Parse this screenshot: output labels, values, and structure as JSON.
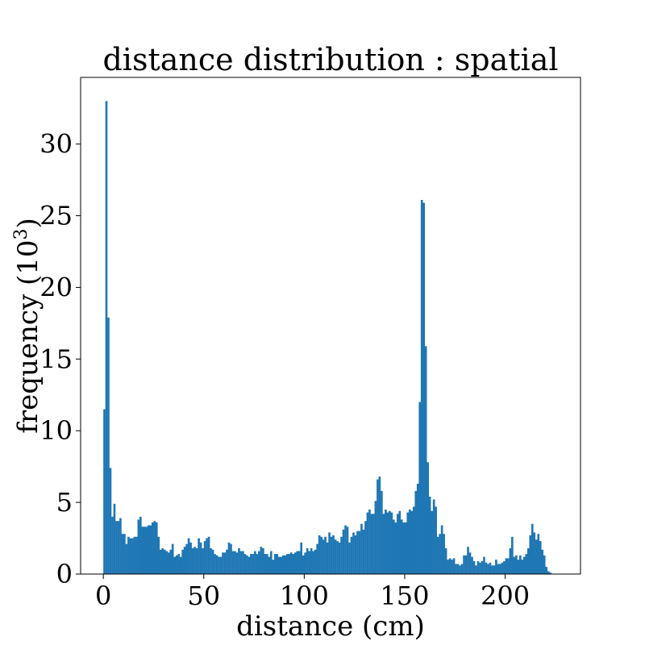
{
  "chart_data": {
    "type": "bar",
    "title": "distance distribution : spatial",
    "xlabel": "distance (cm)",
    "ylabel": "frequency (10",
    "ylabel_exp": "3",
    "ylabel_close": ")",
    "xlim": [
      -11.3,
      237.5
    ],
    "ylim": [
      0,
      34.65
    ],
    "xticks": [
      0,
      50,
      100,
      150,
      200
    ],
    "yticks": [
      0,
      5,
      10,
      15,
      20,
      25,
      30
    ],
    "bin_start": 0,
    "bin_width": 1,
    "bar_color": "#1f77b4",
    "values": [
      11.5,
      33.0,
      17.9,
      7.4,
      4.0,
      4.9,
      3.7,
      3.7,
      3.9,
      2.8,
      2.8,
      2.1,
      2.6,
      2.5,
      2.5,
      2.6,
      2.6,
      3.8,
      4.0,
      3.3,
      3.3,
      3.3,
      3.4,
      3.4,
      3.6,
      3.7,
      3.6,
      2.6,
      1.7,
      1.8,
      1.7,
      1.6,
      1.5,
      1.7,
      2.1,
      1.2,
      1.3,
      1.4,
      1.2,
      1.7,
      1.9,
      2.1,
      2.5,
      2.2,
      1.8,
      1.9,
      1.8,
      2.5,
      2.2,
      1.8,
      2.3,
      2.5,
      2.6,
      1.8,
      1.7,
      1.4,
      1.3,
      1.2,
      1.2,
      1.5,
      1.5,
      1.7,
      2.2,
      2.1,
      1.6,
      1.6,
      1.5,
      1.8,
      1.6,
      1.6,
      1.4,
      1.3,
      1.2,
      1.4,
      1.4,
      1.6,
      1.4,
      1.6,
      1.9,
      1.8,
      1.4,
      1.4,
      1.2,
      1.6,
      1.0,
      1.4,
      1.4,
      1.2,
      1.2,
      1.3,
      1.3,
      1.4,
      1.4,
      1.5,
      1.4,
      1.5,
      1.6,
      1.6,
      2.2,
      1.3,
      1.5,
      1.8,
      1.6,
      1.8,
      1.6,
      1.7,
      2.1,
      2.7,
      2.6,
      2.4,
      2.6,
      2.2,
      2.9,
      2.6,
      2.7,
      2.4,
      2.3,
      2.2,
      2.6,
      3.1,
      3.4,
      3.3,
      2.2,
      2.6,
      2.9,
      2.7,
      3.0,
      3.0,
      3.5,
      3.1,
      3.7,
      4.3,
      4.5,
      4.2,
      4.2,
      5.1,
      6.6,
      6.8,
      5.8,
      4.2,
      4.5,
      4.3,
      4.4,
      4.3,
      3.8,
      3.6,
      4.2,
      4.4,
      3.8,
      3.6,
      3.6,
      4.3,
      4.5,
      4.4,
      4.7,
      5.8,
      6.3,
      12.0,
      26.1,
      25.9,
      15.9,
      7.8,
      5.4,
      4.4,
      5.2,
      4.7,
      2.6,
      2.8,
      3.4,
      2.8,
      1.8,
      1.0,
      1.1,
      1.0,
      1.1,
      0.7,
      0.7,
      0.6,
      0.7,
      1.3,
      1.3,
      1.9,
      1.5,
      1.2,
      0.9,
      0.6,
      0.9,
      0.8,
      0.9,
      1.2,
      0.8,
      0.7,
      0.8,
      0.6,
      0.6,
      1.0,
      0.7,
      0.7,
      0.8,
      0.9,
      1.1,
      1.1,
      1.8,
      2.6,
      1.2,
      1.3,
      1.0,
      1.3,
      1.0,
      1.2,
      1.4,
      1.8,
      2.7,
      3.5,
      2.9,
      2.4,
      2.8,
      2.3,
      1.7,
      1.3,
      0.5,
      0.2,
      0.1
    ]
  }
}
